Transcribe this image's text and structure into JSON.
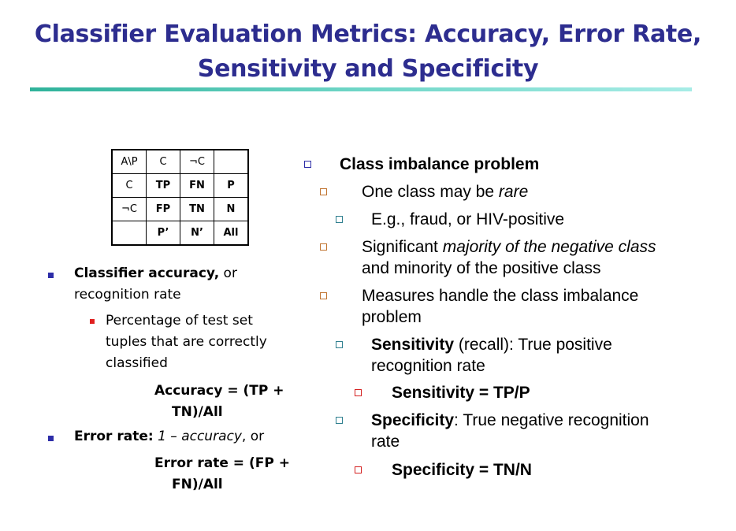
{
  "title": {
    "line1": "Classifier Evaluation Metrics: Accuracy, Error Rate,",
    "line2": "Sensitivity and Specificity"
  },
  "confusion_matrix": {
    "rows": [
      [
        "A\\P",
        "C",
        "¬C",
        ""
      ],
      [
        "C",
        "TP",
        "FN",
        "P"
      ],
      [
        "¬C",
        "FP",
        "TN",
        "N"
      ],
      [
        "",
        "P’",
        "N’",
        "All"
      ]
    ]
  },
  "left": {
    "accuracy_bold": "Classifier accuracy,",
    "accuracy_rest": " or",
    "accuracy_line2": "recognition rate",
    "pct_line1": "Percentage of test set",
    "pct_line2": "tuples that are correctly",
    "pct_line3": "classified",
    "acc_formula_1": "Accuracy = (TP +",
    "acc_formula_2": "TN)/All",
    "err_bold": "Error rate:",
    "err_italic": " 1 – accuracy",
    "err_rest": ", or",
    "err_formula_1": "Error rate = (FP +",
    "err_formula_2": "FN)/All"
  },
  "right": {
    "imbalance": "Class imbalance problem",
    "rare_pre": "One class may be ",
    "rare_it": "rare",
    "eg": "E.g., fraud, or HIV-positive",
    "sig_pre": "Significant ",
    "sig_it": "majority of the negative class",
    "sig_line2": "and minority of the positive class",
    "measures_1": "Measures handle the class imbalance",
    "measures_2": "problem",
    "sens_bold": "Sensitivity",
    "sens_rest": " (recall): True positive",
    "sens_line2": "recognition rate",
    "sens_formula": "Sensitivity = TP/P",
    "spec_bold": "Specificity",
    "spec_rest": ": True negative recognition",
    "spec_line2": "rate",
    "spec_formula": "Specificity = TN/N"
  }
}
